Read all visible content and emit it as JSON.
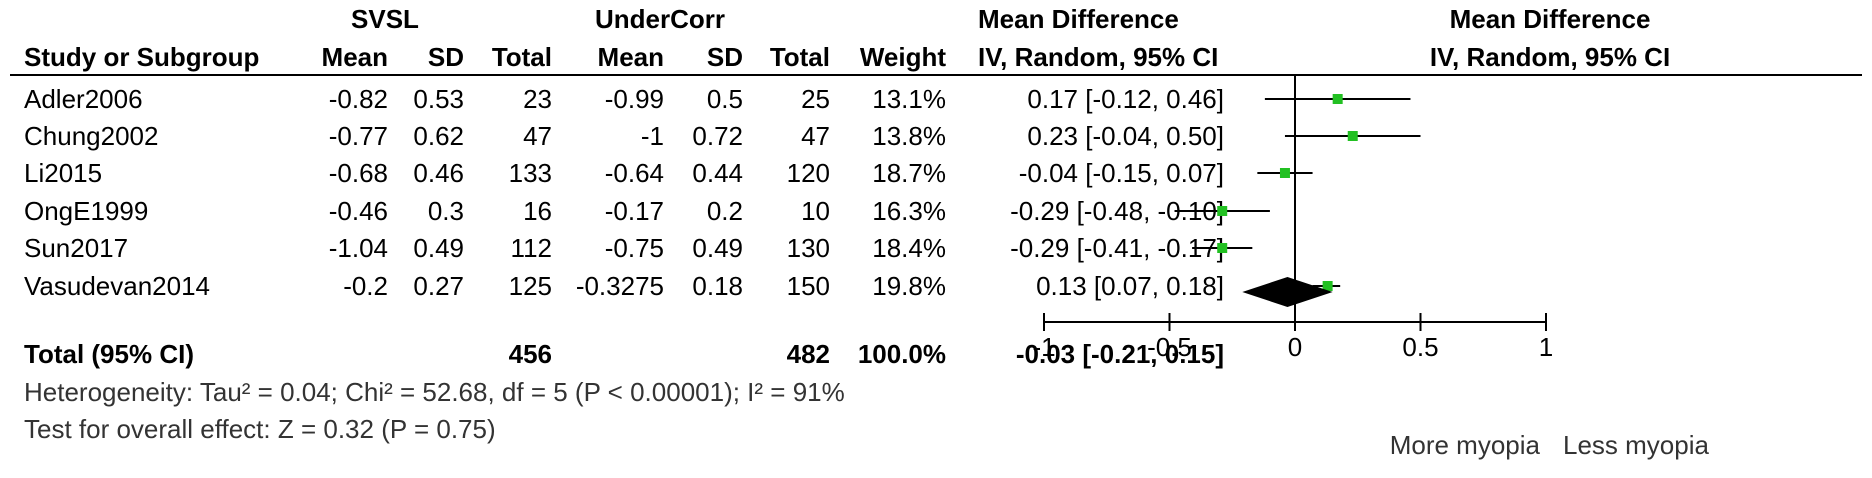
{
  "colors": {
    "marker": "#22c022",
    "line": "#000000",
    "diamond": "#000000"
  },
  "header": {
    "group1": "SVSL",
    "group2": "UnderCorr",
    "md_title": "Mean Difference",
    "md_sub": "IV, Random, 95% CI",
    "plot_title": "Mean Difference",
    "plot_sub": "IV, Random, 95% CI",
    "study_col": "Study or Subgroup",
    "mean1": "Mean",
    "sd1": "SD",
    "total1": "Total",
    "mean2": "Mean",
    "sd2": "SD",
    "total2": "Total",
    "weight": "Weight"
  },
  "studies": [
    {
      "name": "Adler2006",
      "mean1": "-0.82",
      "sd1": "0.53",
      "total1": "23",
      "mean2": "-0.99",
      "sd2": "0.5",
      "total2": "25",
      "weight": "13.1%",
      "ci_text": "0.17 [-0.12, 0.46]"
    },
    {
      "name": "Chung2002",
      "mean1": "-0.77",
      "sd1": "0.62",
      "total1": "47",
      "mean2": "-1",
      "sd2": "0.72",
      "total2": "47",
      "weight": "13.8%",
      "ci_text": "0.23 [-0.04, 0.50]"
    },
    {
      "name": "Li2015",
      "mean1": "-0.68",
      "sd1": "0.46",
      "total1": "133",
      "mean2": "-0.64",
      "sd2": "0.44",
      "total2": "120",
      "weight": "18.7%",
      "ci_text": "-0.04 [-0.15, 0.07]"
    },
    {
      "name": "OngE1999",
      "mean1": "-0.46",
      "sd1": "0.3",
      "total1": "16",
      "mean2": "-0.17",
      "sd2": "0.2",
      "total2": "10",
      "weight": "16.3%",
      "ci_text": "-0.29 [-0.48, -0.10]"
    },
    {
      "name": "Sun2017",
      "mean1": "-1.04",
      "sd1": "0.49",
      "total1": "112",
      "mean2": "-0.75",
      "sd2": "0.49",
      "total2": "130",
      "weight": "18.4%",
      "ci_text": "-0.29 [-0.41, -0.17]"
    },
    {
      "name": "Vasudevan2014",
      "mean1": "-0.2",
      "sd1": "0.27",
      "total1": "125",
      "mean2": "-0.3275",
      "sd2": "0.18",
      "total2": "150",
      "weight": "19.8%",
      "ci_text": "0.13 [0.07, 0.18]"
    }
  ],
  "total": {
    "label": "Total (95% CI)",
    "total1": "456",
    "total2": "482",
    "weight": "100.0%",
    "ci_text": "-0.03 [-0.21, 0.15]"
  },
  "footer": {
    "heterogeneity": "Heterogeneity: Tau² = 0.04; Chi² = 52.68, df = 5 (P < 0.00001); I² = 91%",
    "overall": "Test for overall effect: Z = 0.32 (P = 0.75)"
  },
  "axis_labels": {
    "left": "More myopia",
    "right": "Less myopia"
  },
  "chart_data": {
    "type": "forest",
    "xlim": [
      -1,
      1
    ],
    "ticks": [
      -1,
      -0.5,
      0,
      0.5,
      1
    ],
    "tick_labels": [
      "-1",
      "-0.5",
      "0",
      "0.5",
      "1"
    ],
    "points": [
      {
        "study": "Adler2006",
        "md": 0.17,
        "lo": -0.12,
        "hi": 0.46,
        "weight": 13.1
      },
      {
        "study": "Chung2002",
        "md": 0.23,
        "lo": -0.04,
        "hi": 0.5,
        "weight": 13.8
      },
      {
        "study": "Li2015",
        "md": -0.04,
        "lo": -0.15,
        "hi": 0.07,
        "weight": 18.7
      },
      {
        "study": "OngE1999",
        "md": -0.29,
        "lo": -0.48,
        "hi": -0.1,
        "weight": 16.3
      },
      {
        "study": "Sun2017",
        "md": -0.29,
        "lo": -0.41,
        "hi": -0.17,
        "weight": 18.4
      },
      {
        "study": "Vasudevan2014",
        "md": 0.13,
        "lo": 0.07,
        "hi": 0.18,
        "weight": 19.8
      }
    ],
    "pooled": {
      "md": -0.03,
      "lo": -0.21,
      "hi": 0.15
    }
  }
}
